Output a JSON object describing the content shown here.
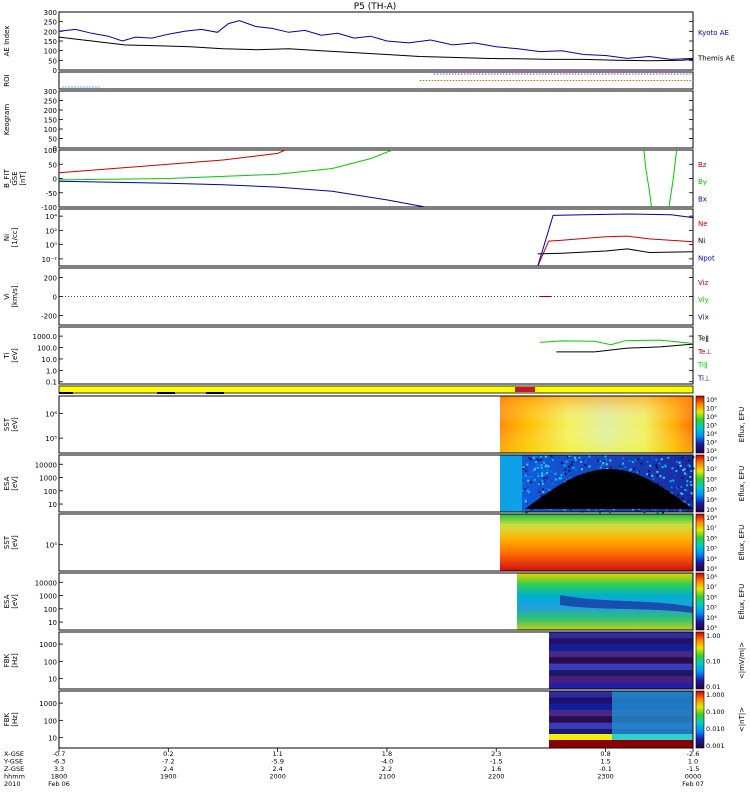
{
  "title": "P5 (TH-A)",
  "chart_data": [
    {
      "type": "line",
      "panel": "ae",
      "ylabel": "AE Index",
      "ylim": [
        0,
        300
      ],
      "yticks": [
        "300",
        "250",
        "200",
        "150",
        "100",
        "50",
        "0"
      ],
      "series": [
        {
          "name": "Kyoto AE",
          "color": "#0000aa",
          "values": [
            [
              1800,
              200
            ],
            [
              1815,
              210
            ],
            [
              1830,
              190
            ],
            [
              1845,
              175
            ],
            [
              1858,
              150
            ],
            [
              1870,
              170
            ],
            [
              1885,
              165
            ],
            [
              1900,
              185
            ],
            [
              1915,
              200
            ],
            [
              1930,
              210
            ],
            [
              1945,
              195
            ],
            [
              1955,
              240
            ],
            [
              1965,
              255
            ],
            [
              1980,
              225
            ],
            [
              1995,
              215
            ],
            [
              2010,
              195
            ],
            [
              2025,
              205
            ],
            [
              2040,
              180
            ],
            [
              2055,
              190
            ],
            [
              2070,
              165
            ],
            [
              2085,
              175
            ],
            [
              2100,
              150
            ],
            [
              2120,
              140
            ],
            [
              2140,
              155
            ],
            [
              2160,
              130
            ],
            [
              2180,
              140
            ],
            [
              2200,
              120
            ],
            [
              2220,
              110
            ],
            [
              2240,
              95
            ],
            [
              2260,
              100
            ],
            [
              2280,
              80
            ],
            [
              2300,
              75
            ],
            [
              2320,
              60
            ],
            [
              2340,
              70
            ],
            [
              2360,
              55
            ],
            [
              2380,
              60
            ]
          ]
        },
        {
          "name": "Themis AE",
          "color": "#000000",
          "values": [
            [
              1800,
              170
            ],
            [
              1830,
              150
            ],
            [
              1860,
              130
            ],
            [
              1890,
              125
            ],
            [
              1920,
              120
            ],
            [
              1950,
              110
            ],
            [
              1980,
              105
            ],
            [
              2010,
              110
            ],
            [
              2040,
              100
            ],
            [
              2070,
              90
            ],
            [
              2100,
              80
            ],
            [
              2130,
              70
            ],
            [
              2160,
              65
            ],
            [
              2190,
              60
            ],
            [
              2220,
              58
            ],
            [
              2250,
              55
            ],
            [
              2280,
              55
            ],
            [
              2310,
              50
            ],
            [
              2340,
              48
            ],
            [
              2370,
              50
            ],
            [
              2380,
              55
            ]
          ]
        }
      ]
    },
    {
      "type": "line",
      "panel": "roi",
      "ylabel": "ROI",
      "series": [
        {
          "name": "roi-a",
          "color": "#20b0c0",
          "values": [
            [
              1803,
              0
            ],
            [
              1838,
              0
            ]
          ]
        },
        {
          "name": "roi-b",
          "color": "#cc6600",
          "values": [
            [
              2130,
              1
            ],
            [
              2380,
              1
            ]
          ]
        },
        {
          "name": "roi-c",
          "color": "#8a2be2",
          "values": [
            [
              2143,
              2
            ],
            [
              2380,
              2
            ]
          ]
        }
      ]
    },
    {
      "type": "line",
      "panel": "keogram",
      "ylabel": "Keogram",
      "ylim": [
        0,
        300
      ],
      "yticks": [
        "300",
        "250",
        "200",
        "150",
        "100",
        "50",
        "0"
      ],
      "series": []
    },
    {
      "type": "line",
      "panel": "bfield",
      "ylabel": "B_FIT",
      "ylim": [
        -100,
        100
      ],
      "yticks": [
        "100",
        "50",
        "0",
        "-50",
        "-100"
      ],
      "series": [
        {
          "name": "Bz",
          "color": "#cc0000",
          "values": [
            [
              1800,
              20
            ],
            [
              1850,
              35
            ],
            [
              1900,
              50
            ],
            [
              1950,
              65
            ],
            [
              2000,
              88
            ],
            [
              2007,
              100
            ]
          ]
        },
        {
          "name": "By",
          "color": "#00cc00",
          "values": [
            [
              1800,
              -5
            ],
            [
              1900,
              0
            ],
            [
              2000,
              15
            ],
            [
              2050,
              35
            ],
            [
              2085,
              70
            ],
            [
              2105,
              100
            ]
          ]
        },
        {
          "name": "Bx",
          "color": "#0000aa",
          "values": [
            [
              1800,
              -10
            ],
            [
              1850,
              -13
            ],
            [
              1900,
              -17
            ],
            [
              1950,
              -22
            ],
            [
              2000,
              -30
            ],
            [
              2050,
              -45
            ],
            [
              2100,
              -75
            ],
            [
              2135,
              -100
            ]
          ]
        }
      ]
    },
    {
      "type": "line",
      "panel": "density",
      "ylabel": "Ni",
      "ylim": [
        -3,
        5
      ],
      "yticks": [
        "10⁴",
        "10²",
        "10⁰",
        "10⁻²"
      ],
      "series": [
        {
          "name": "Ne",
          "color": "#cc0000",
          "values": [
            [
              2238,
              -3
            ],
            [
              2248,
              0.5
            ],
            [
              2260,
              0.6
            ],
            [
              2300,
              1.1
            ],
            [
              2320,
              1.2
            ],
            [
              2340,
              0.8
            ],
            [
              2380,
              0.4
            ]
          ]
        },
        {
          "name": "Ni",
          "color": "#000000",
          "values": [
            [
              2238,
              -1.3
            ],
            [
              2260,
              -1.2
            ],
            [
              2300,
              -0.9
            ],
            [
              2320,
              -0.6
            ],
            [
              2340,
              -1.1
            ],
            [
              2380,
              -1.0
            ]
          ]
        },
        {
          "name": "Npot",
          "color": "#0000aa",
          "values": [
            [
              2238,
              -3
            ],
            [
              2252,
              4.1
            ],
            [
              2280,
              4.2
            ],
            [
              2320,
              4.3
            ],
            [
              2360,
              4.2
            ],
            [
              2380,
              3.8
            ]
          ]
        }
      ]
    },
    {
      "type": "line",
      "panel": "velocity",
      "ylabel": "Vi",
      "ylim": [
        -300,
        300
      ],
      "yticks": [
        "200",
        "0",
        "-200"
      ],
      "series": [
        {
          "name": "Vix",
          "color": "#0000aa",
          "values": []
        },
        {
          "name": "Viy",
          "color": "#00cc00",
          "values": []
        },
        {
          "name": "Viz",
          "color": "#cc0000",
          "values": [
            [
              2240,
              0
            ],
            [
              2250,
              0
            ]
          ]
        }
      ]
    },
    {
      "type": "line",
      "panel": "temperature",
      "ylabel": "Ti",
      "ylim": [
        -1.2,
        3.8
      ],
      "yticks": [
        "1000.0",
        "100.0",
        "10.0",
        "1.0",
        "0.1"
      ],
      "series": [
        {
          "name": "Teǁ",
          "color": "#000000",
          "values": [
            [
              2255,
              1.62
            ],
            [
              2290,
              1.62
            ],
            [
              2320,
              1.95
            ],
            [
              2350,
              2.05
            ],
            [
              2380,
              2.3
            ]
          ]
        },
        {
          "name": "Te⊥",
          "color": "#cc0000",
          "values": []
        },
        {
          "name": "Tiǁ",
          "color": "#00cc00",
          "values": [
            [
              2240,
              2.45
            ],
            [
              2260,
              2.58
            ],
            [
              2290,
              2.55
            ],
            [
              2305,
              2.25
            ],
            [
              2318,
              2.6
            ],
            [
              2350,
              2.65
            ],
            [
              2380,
              2.35
            ]
          ]
        },
        {
          "name": "Ti⊥",
          "color": "#0000aa",
          "values": []
        }
      ]
    },
    {
      "type": "heatmap",
      "panel": "sst-ion",
      "ylabel": "SST",
      "yticks": [
        "10⁶",
        "10⁵"
      ],
      "colorbar_label": "Eflux, EFU",
      "colorbar_ticks": [
        "10⁸",
        "10⁷",
        "10⁶",
        "10⁵",
        "10⁴",
        "10³",
        "10²"
      ]
    },
    {
      "type": "heatmap",
      "panel": "esa-ion",
      "ylabel": "ESA",
      "yticks": [
        "10000",
        "1000",
        "100",
        "10"
      ],
      "colorbar_label": "Eflux, EFU",
      "colorbar_ticks": [
        "10⁸",
        "10⁷",
        "10⁶",
        "10⁵",
        "10⁴",
        "10³"
      ]
    },
    {
      "type": "heatmap",
      "panel": "sst-electron",
      "ylabel": "SST",
      "yticks": [
        "10⁵"
      ],
      "colorbar_label": "Eflux, EFU",
      "colorbar_ticks": [
        "10⁸",
        "10⁷",
        "10⁶",
        "10⁵",
        "10⁴",
        "10³"
      ]
    },
    {
      "type": "heatmap",
      "panel": "esa-electron",
      "ylabel": "ESA",
      "yticks": [
        "10000",
        "1000",
        "100",
        "10"
      ],
      "colorbar_label": "Eflux, EFU",
      "colorbar_ticks": [
        "10⁸",
        "10⁷",
        "10⁶",
        "10⁵",
        "10⁴",
        "10³"
      ]
    },
    {
      "type": "heatmap",
      "panel": "fbk-e",
      "ylabel": "FBK",
      "yticks": [
        "1000",
        "100",
        "10"
      ],
      "colorbar_label": "<|mV/m|>",
      "colorbar_ticks": [
        "1.00",
        "0.10",
        "0.01"
      ]
    },
    {
      "type": "heatmap",
      "panel": "fbk-b",
      "ylabel": "FBK",
      "yticks": [
        "1000",
        "100",
        "10"
      ],
      "colorbar_label": "<|nT|>",
      "colorbar_ticks": [
        "1.000",
        "0.100",
        "0.010",
        "0.001"
      ]
    }
  ],
  "x_axis": {
    "row_labels": [
      "X-GSE",
      "Y-GSE",
      "Z-GSE",
      "hhmm",
      "2010"
    ],
    "ticks": [
      {
        "x": 1800,
        "vals": [
          "-0.7",
          "-6.3",
          "3.3",
          "1800",
          "Feb 06"
        ]
      },
      {
        "x": 1900,
        "vals": [
          "0.2",
          "-7.2",
          "2.4",
          "1900",
          ""
        ]
      },
      {
        "x": 2000,
        "vals": [
          "1.1",
          "-5.9",
          "2.4",
          "2000",
          ""
        ]
      },
      {
        "x": 2100,
        "vals": [
          "1.8",
          "-4.0",
          "2.2",
          "2100",
          ""
        ]
      },
      {
        "x": 2200,
        "vals": [
          "2.3",
          "-1.5",
          "1.6",
          "2200",
          ""
        ]
      },
      {
        "x": 2300,
        "vals": [
          "0.8",
          "1.5",
          "-0.1",
          "2300",
          ""
        ]
      },
      {
        "x": 2380,
        "vals": [
          "-2.6",
          "1.0",
          "-1.5",
          "0000",
          "Feb 07"
        ]
      }
    ]
  },
  "left_labels": {
    "ae": [
      "AE Index"
    ],
    "roi": [
      "ROI"
    ],
    "keogram": [
      "Keogram"
    ],
    "bfield": [
      "B_FIT",
      "GSE",
      "[nT]"
    ],
    "density": [
      "Ni",
      "[1/cc]"
    ],
    "velocity": [
      "Vi",
      "[km/s]"
    ],
    "temperature": [
      "Ti",
      "[eV]"
    ],
    "sst-ion": [
      "SST",
      "[eV]"
    ],
    "esa-ion": [
      "ESA",
      "[eV]"
    ],
    "sst-electron": [
      "SST",
      "[eV]"
    ],
    "esa-electron": [
      "ESA",
      "[eV]"
    ],
    "fbk-e": [
      "FBK",
      "[Hz]"
    ],
    "fbk-b": [
      "FBK",
      "[Hz]"
    ]
  },
  "legends": {
    "ae": [
      {
        "label": "Kyoto AE",
        "color": "#0000aa"
      },
      {
        "label": "Themis AE",
        "color": "#000000"
      }
    ],
    "bfield": [
      {
        "label": "Bz",
        "color": "#cc0000"
      },
      {
        "label": "By",
        "color": "#00cc00"
      },
      {
        "label": "Bx",
        "color": "#0000aa"
      }
    ],
    "density": [
      {
        "label": "Ne",
        "color": "#cc0000"
      },
      {
        "label": "Ni",
        "color": "#000000"
      },
      {
        "label": "Npot",
        "color": "#0000aa"
      }
    ],
    "velocity": [
      {
        "label": "Viz",
        "color": "#cc0000"
      },
      {
        "label": "Viy",
        "color": "#00cc00"
      },
      {
        "label": "Vix",
        "color": "#0000aa"
      }
    ],
    "temperature": [
      {
        "label": "Teǁ",
        "color": "#000000"
      },
      {
        "label": "Te⊥",
        "color": "#cc0000"
      },
      {
        "label": "Tiǁ",
        "color": "#00cc00"
      },
      {
        "label": "Ti⊥",
        "color": "#0000aa"
      }
    ]
  }
}
